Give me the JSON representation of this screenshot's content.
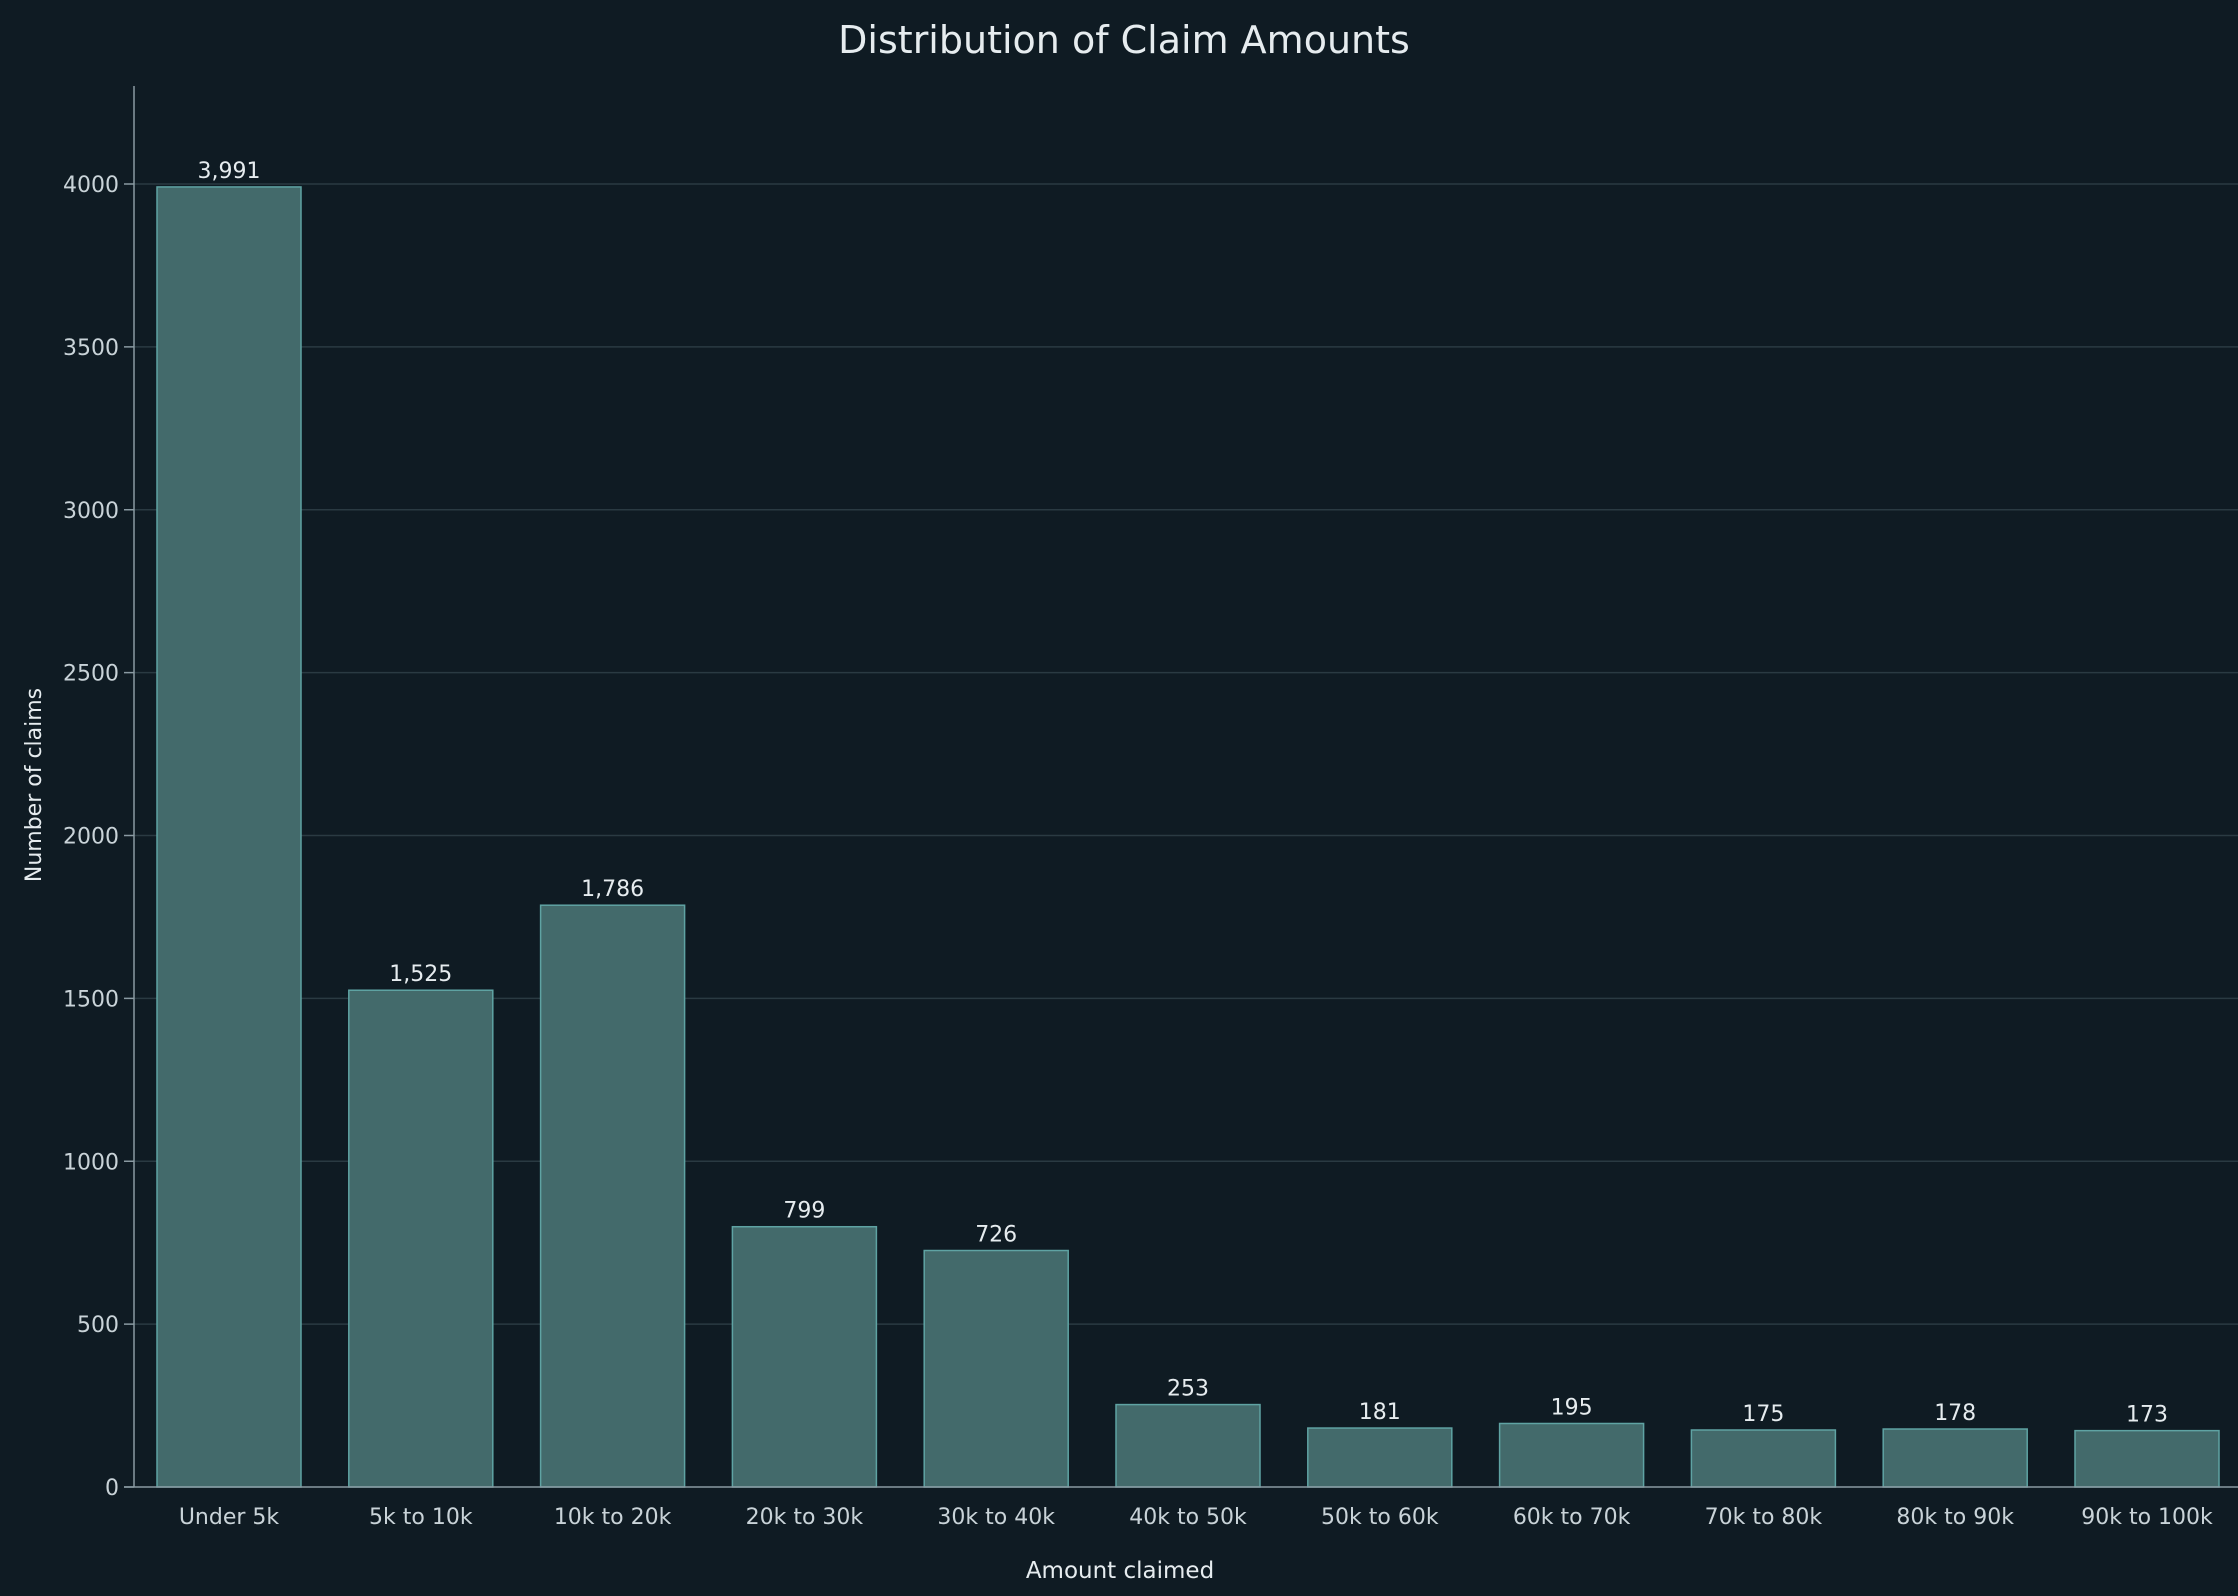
{
  "chart_data": {
    "type": "bar",
    "title": "Distribution of Claim Amounts",
    "xlabel": "Amount claimed",
    "ylabel": "Number of claims",
    "categories": [
      "Under 5k",
      "5k to 10k",
      "10k to 20k",
      "20k to 30k",
      "30k to 40k",
      "40k to 50k",
      "50k to 60k",
      "60k to 70k",
      "70k to 80k",
      "80k to 90k",
      "90k to 100k"
    ],
    "values": [
      3991,
      1525,
      1786,
      799,
      726,
      253,
      181,
      195,
      175,
      178,
      173
    ],
    "value_labels": [
      "3,991",
      "1,525",
      "1,786",
      "799",
      "726",
      "253",
      "181",
      "195",
      "175",
      "178",
      "173"
    ],
    "yticks": [
      0,
      500,
      1000,
      1500,
      2000,
      2500,
      3000,
      3500,
      4000
    ],
    "ylim": [
      0,
      4300
    ],
    "grid": true,
    "legend": "none"
  },
  "colors": {
    "background": "#0f1b23",
    "bar_fill": "#436a6b",
    "bar_stroke": "#5fa3a3",
    "grid": "#2a3a42",
    "axis": "#8a9aa2",
    "text": "#e6ecef",
    "tick_text": "#c9d3d8"
  }
}
